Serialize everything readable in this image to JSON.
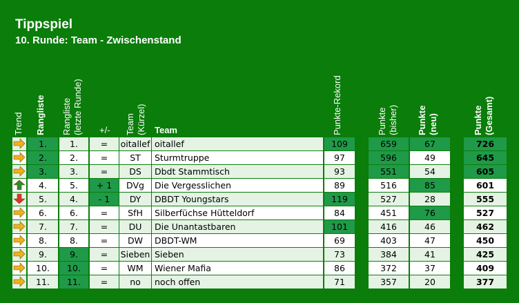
{
  "title": "Tippspiel",
  "subtitle": "10. Runde: Team - Zwischenstand",
  "headers": {
    "trend": "Trend",
    "rangliste": "Rangliste",
    "rangliste_letzte_1": "Rangliste",
    "rangliste_letzte_2": "(letzte Runde)",
    "plusminus": "+/-",
    "team_kuerzel_1": "Team",
    "team_kuerzel_2": "(Kürzel)",
    "team": "Team",
    "rekord": "Punkte-Rekord",
    "bisher_1": "Punkte",
    "bisher_2": "(bisher)",
    "neu_1": "Punkte",
    "neu_2": "(neu)",
    "gesamt_1": "Punkte",
    "gesamt_2": "(Gesamt)"
  },
  "colors": {
    "background": "#0a7d0a",
    "highlight": "#1f9a48",
    "row_light": "#e4f3e4",
    "row_white": "#ffffff",
    "arrow_flat": "#f0b020",
    "arrow_up": "#2e8b2e",
    "arrow_down": "#e03030"
  },
  "rows": [
    {
      "trend": "flat",
      "rank": "1.",
      "last": "1.",
      "pm": "=",
      "short": "oitallef",
      "team": "oitallef",
      "rekord": "109",
      "bisher": "659",
      "neu": "67",
      "gesamt": "726"
    },
    {
      "trend": "flat",
      "rank": "2.",
      "last": "2.",
      "pm": "=",
      "short": "ST",
      "team": "Sturmtruppe",
      "rekord": "97",
      "bisher": "596",
      "neu": "49",
      "gesamt": "645"
    },
    {
      "trend": "flat",
      "rank": "3.",
      "last": "3.",
      "pm": "=",
      "short": "DS",
      "team": "Dbdt Stammtisch",
      "rekord": "93",
      "bisher": "551",
      "neu": "54",
      "gesamt": "605"
    },
    {
      "trend": "up",
      "rank": "4.",
      "last": "5.",
      "pm": "+ 1",
      "short": "DVg",
      "team": "Die Vergesslichen",
      "rekord": "89",
      "bisher": "516",
      "neu": "85",
      "gesamt": "601"
    },
    {
      "trend": "down",
      "rank": "5.",
      "last": "4.",
      "pm": "- 1",
      "short": "DY",
      "team": "DBDT Youngstars",
      "rekord": "119",
      "bisher": "527",
      "neu": "28",
      "gesamt": "555"
    },
    {
      "trend": "flat",
      "rank": "6.",
      "last": "6.",
      "pm": "=",
      "short": "SfH",
      "team": "Silberfüchse Hütteldorf",
      "rekord": "84",
      "bisher": "451",
      "neu": "76",
      "gesamt": "527"
    },
    {
      "trend": "flat",
      "rank": "7.",
      "last": "7.",
      "pm": "=",
      "short": "DU",
      "team": "Die Unantastbaren",
      "rekord": "101",
      "bisher": "416",
      "neu": "46",
      "gesamt": "462"
    },
    {
      "trend": "flat",
      "rank": "8.",
      "last": "8.",
      "pm": "=",
      "short": "DW",
      "team": "DBDT-WM",
      "rekord": "69",
      "bisher": "403",
      "neu": "47",
      "gesamt": "450"
    },
    {
      "trend": "flat",
      "rank": "9.",
      "last": "9.",
      "pm": "=",
      "short": "Sieben",
      "team": "Sieben",
      "rekord": "73",
      "bisher": "384",
      "neu": "41",
      "gesamt": "425"
    },
    {
      "trend": "flat",
      "rank": "10.",
      "last": "10.",
      "pm": "=",
      "short": "WM",
      "team": "Wiener Mafia",
      "rekord": "86",
      "bisher": "372",
      "neu": "37",
      "gesamt": "409"
    },
    {
      "trend": "flat",
      "rank": "11.",
      "last": "11.",
      "pm": "=",
      "short": "no",
      "team": "noch offen",
      "rekord": "71",
      "bisher": "357",
      "neu": "20",
      "gesamt": "377"
    }
  ],
  "highlights": {
    "rank": [
      0,
      1,
      2
    ],
    "last": [
      8,
      9,
      10
    ],
    "pm": [
      3,
      4
    ],
    "rekord": [
      0,
      4,
      6
    ],
    "bisher": [
      0,
      1,
      2
    ],
    "neu": [
      0,
      3,
      5
    ],
    "gesamt": [
      0,
      1,
      2
    ]
  }
}
